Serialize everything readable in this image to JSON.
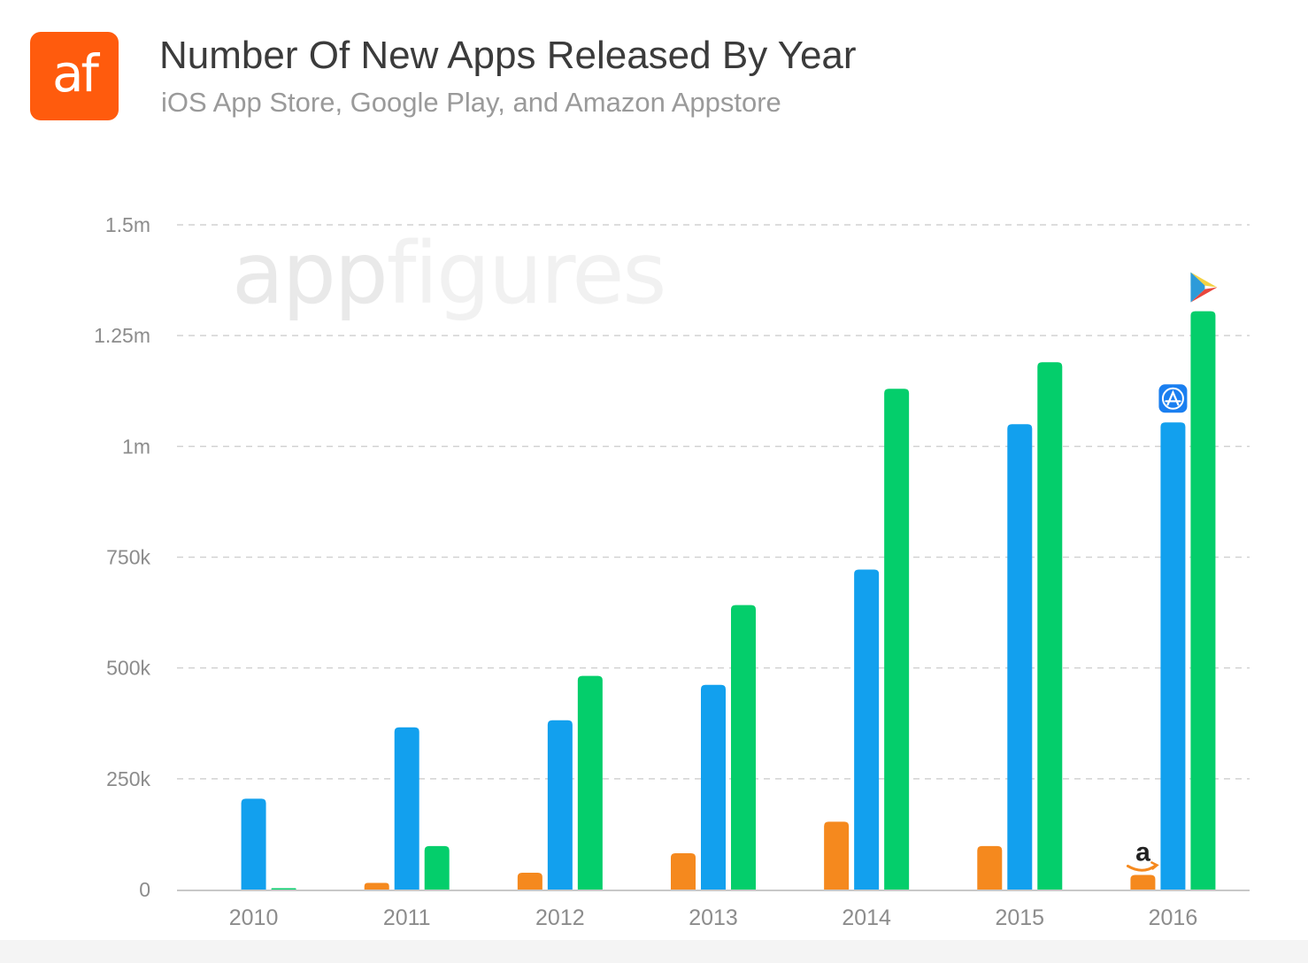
{
  "header": {
    "logo_text": "af",
    "title": "Number Of New Apps Released By Year",
    "subtitle": "iOS App Store, Google Play, and Amazon Appstore"
  },
  "watermark": {
    "light": "app",
    "lighter": "figures"
  },
  "colors": {
    "amazon": "#f5891e",
    "ios": "#12a0ee",
    "google": "#04ce6b",
    "logo": "#ff5b0d"
  },
  "chart_data": {
    "type": "bar",
    "categories": [
      "2010",
      "2011",
      "2012",
      "2013",
      "2014",
      "2015",
      "2016"
    ],
    "series": [
      {
        "key": "amazon",
        "icon": "amazon-icon",
        "values": [
          0,
          15000,
          38000,
          82000,
          153000,
          98000,
          33000
        ]
      },
      {
        "key": "ios",
        "icon": "app-store-icon",
        "values": [
          205000,
          366000,
          382000,
          462000,
          722000,
          1050000,
          1054000
        ]
      },
      {
        "key": "google",
        "icon": "google-play-icon",
        "values": [
          3000,
          98000,
          482000,
          642000,
          1130000,
          1190000,
          1305000
        ]
      }
    ],
    "ylim": [
      0,
      1500000
    ],
    "yticks": [
      {
        "value": 0,
        "label": "0"
      },
      {
        "value": 250000,
        "label": "250k"
      },
      {
        "value": 500000,
        "label": "500k"
      },
      {
        "value": 750000,
        "label": "750k"
      },
      {
        "value": 1000000,
        "label": "1m"
      },
      {
        "value": 1250000,
        "label": "1.25m"
      },
      {
        "value": 1500000,
        "label": "1.5m"
      }
    ],
    "grid": true,
    "legend": "icons above the 2016 bars"
  }
}
